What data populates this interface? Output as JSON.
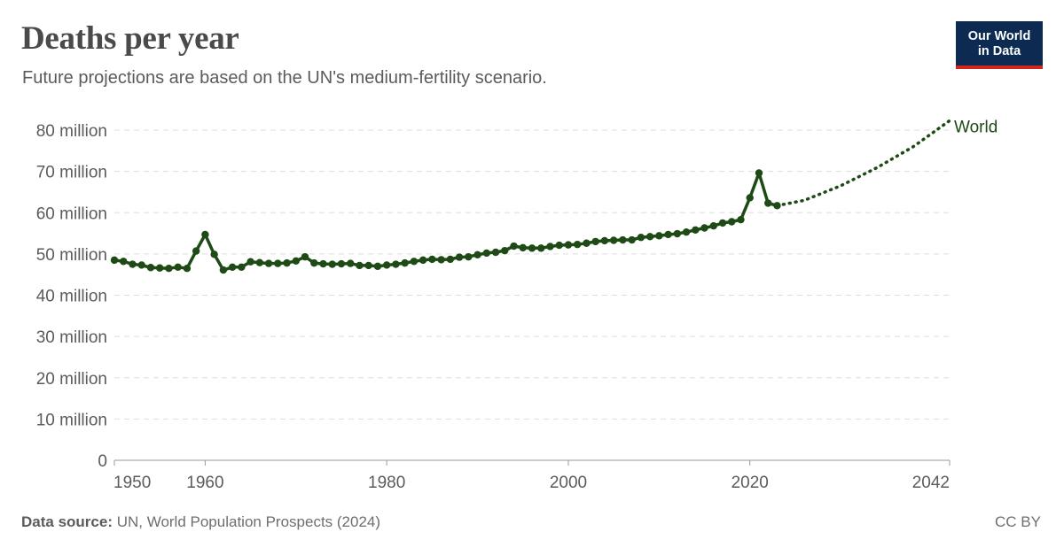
{
  "header": {
    "title": "Deaths per year",
    "subtitle": "Future projections are based on the UN's medium-fertility scenario."
  },
  "logo": {
    "line1": "Our World",
    "line2": "in Data"
  },
  "footer": {
    "source_label": "Data source:",
    "source_text": " UN, World Population Prospects (2024)",
    "license": "CC BY"
  },
  "colors": {
    "series": "#1e4a15",
    "grid": "#dddddd",
    "axis": "#999999",
    "logo_bg": "#0c2a52",
    "logo_accent": "#ce261e"
  },
  "chart_data": {
    "type": "line",
    "xlim": [
      1950,
      2042
    ],
    "ylim": [
      0,
      80000000
    ],
    "x_ticks": [
      {
        "value": 1950,
        "label": "1950"
      },
      {
        "value": 1960,
        "label": "1960"
      },
      {
        "value": 1980,
        "label": "1980"
      },
      {
        "value": 2000,
        "label": "2000"
      },
      {
        "value": 2020,
        "label": "2020"
      },
      {
        "value": 2042,
        "label": "2042"
      }
    ],
    "y_ticks": [
      {
        "value": 0,
        "label": "0"
      },
      {
        "value": 10000000,
        "label": "10 million"
      },
      {
        "value": 20000000,
        "label": "20 million"
      },
      {
        "value": 30000000,
        "label": "30 million"
      },
      {
        "value": 40000000,
        "label": "40 million"
      },
      {
        "value": 50000000,
        "label": "50 million"
      },
      {
        "value": 60000000,
        "label": "60 million"
      },
      {
        "value": 70000000,
        "label": "70 million"
      },
      {
        "value": 80000000,
        "label": "80 million"
      }
    ],
    "grid": "horizontal-dashed",
    "series": [
      {
        "name": "World",
        "x": [
          1950,
          1951,
          1952,
          1953,
          1954,
          1955,
          1956,
          1957,
          1958,
          1959,
          1960,
          1961,
          1962,
          1963,
          1964,
          1965,
          1966,
          1967,
          1968,
          1969,
          1970,
          1971,
          1972,
          1973,
          1974,
          1975,
          1976,
          1977,
          1978,
          1979,
          1980,
          1981,
          1982,
          1983,
          1984,
          1985,
          1986,
          1987,
          1988,
          1989,
          1990,
          1991,
          1992,
          1993,
          1994,
          1995,
          1996,
          1997,
          1998,
          1999,
          2000,
          2001,
          2002,
          2003,
          2004,
          2005,
          2006,
          2007,
          2008,
          2009,
          2010,
          2011,
          2012,
          2013,
          2014,
          2015,
          2016,
          2017,
          2018,
          2019,
          2020,
          2021,
          2022,
          2023
        ],
        "values": [
          48500000,
          48200000,
          47500000,
          47300000,
          46700000,
          46600000,
          46500000,
          46800000,
          46500000,
          50700000,
          54700000,
          49900000,
          46100000,
          46800000,
          46800000,
          48100000,
          47900000,
          47700000,
          47700000,
          47800000,
          48300000,
          49300000,
          47800000,
          47600000,
          47500000,
          47600000,
          47700000,
          47200000,
          47200000,
          47000000,
          47300000,
          47500000,
          47800000,
          48200000,
          48500000,
          48700000,
          48600000,
          48700000,
          49200000,
          49300000,
          49800000,
          50200000,
          50400000,
          50800000,
          51900000,
          51500000,
          51400000,
          51400000,
          51800000,
          52100000,
          52200000,
          52300000,
          52600000,
          53000000,
          53200000,
          53300000,
          53400000,
          53400000,
          54000000,
          54200000,
          54400000,
          54700000,
          54900000,
          55300000,
          55800000,
          56300000,
          56800000,
          57500000,
          57800000,
          58300000,
          63600000,
          69600000,
          62300000,
          61700000
        ]
      },
      {
        "name": "World (projection)",
        "style": "dotted",
        "x": [
          2023,
          2026,
          2030,
          2034,
          2038,
          2042
        ],
        "values": [
          61700000,
          63000000,
          66500000,
          70900000,
          76000000,
          82300000
        ]
      }
    ],
    "series_label": "World"
  }
}
